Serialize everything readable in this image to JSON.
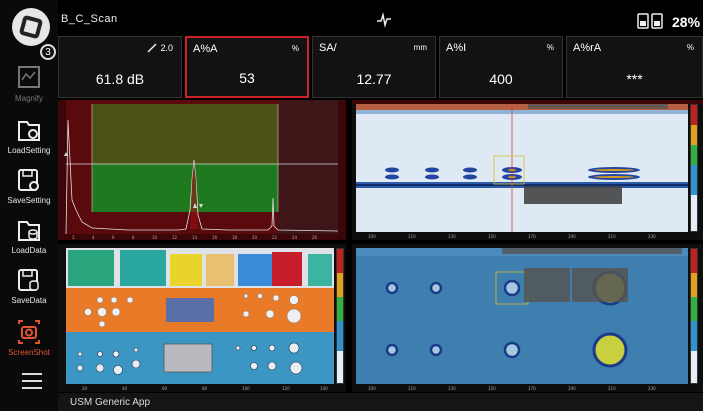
{
  "header": {
    "title": "B_C_Scan",
    "battery_pct": "28%"
  },
  "sidebar": {
    "badge": "3",
    "items": [
      {
        "label": "Magnify"
      },
      {
        "label": "LoadSetting"
      },
      {
        "label": "SaveSetting"
      },
      {
        "label": "LoadData"
      },
      {
        "label": "SaveData"
      },
      {
        "label": "ScreenShot"
      }
    ]
  },
  "readings": [
    {
      "label": "",
      "unit": "2.0",
      "value": "61.8 dB"
    },
    {
      "label": "A%A",
      "unit": "%",
      "value": "53"
    },
    {
      "label": "SA/",
      "unit": "mm",
      "value": "12.77"
    },
    {
      "label": "A%I",
      "unit": "%",
      "value": "400"
    },
    {
      "label": "A%rA",
      "unit": "%",
      "value": "***"
    }
  ],
  "status": {
    "app_name": "USM Generic App"
  },
  "colors": {
    "accent_red": "#cc2228",
    "active_orange": "#e2542f"
  }
}
